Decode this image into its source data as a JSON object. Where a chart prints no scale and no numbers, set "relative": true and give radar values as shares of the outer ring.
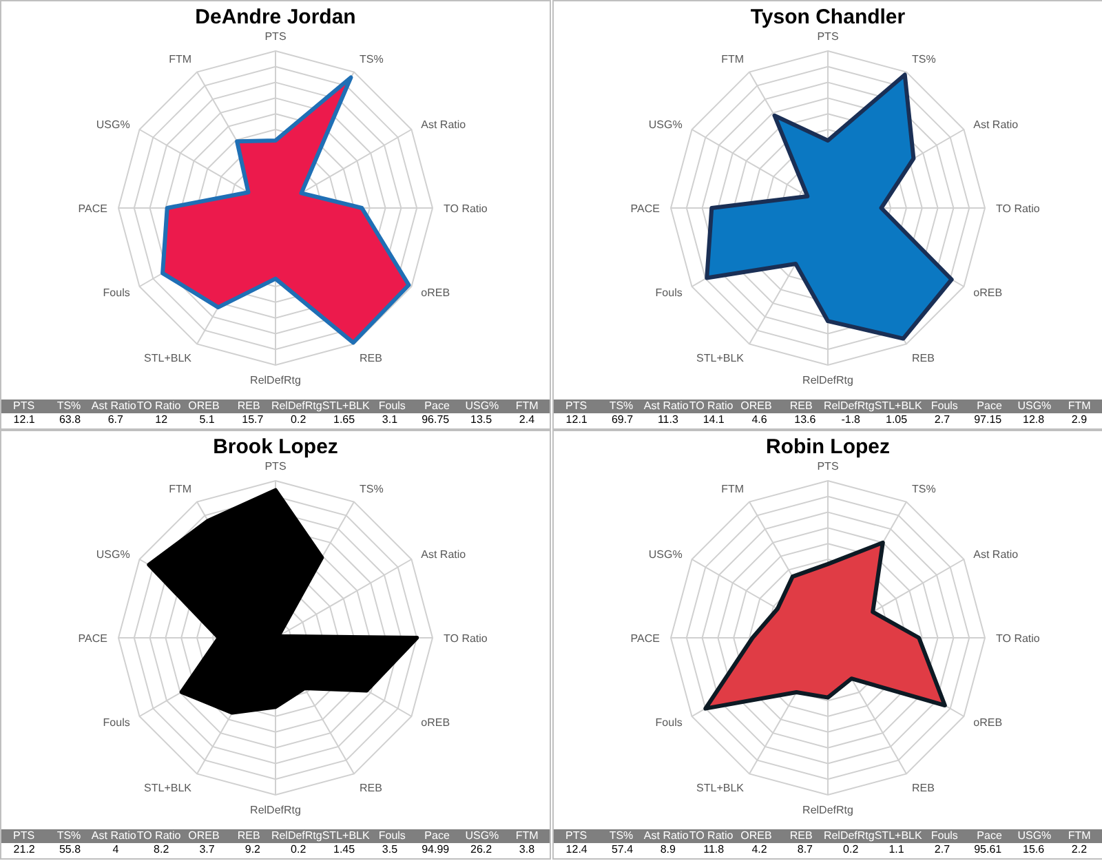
{
  "chart_data": [
    {
      "type": "radar",
      "title": "DeAndre Jordan",
      "relative": true,
      "categories": [
        "PTS",
        "TS%",
        "Ast Ratio",
        "TO Ratio",
        "oREB",
        "REB",
        "RelDefRtg",
        "STL+BLK",
        "Fouls",
        "PACE",
        "USG%",
        "FTM"
      ],
      "series": [
        {
          "color": "#ec1a4c",
          "values": [
            0.43,
            0.96,
            0.19,
            0.55,
            0.98,
            0.99,
            0.45,
            0.73,
            0.83,
            0.69,
            0.2,
            0.49
          ]
        }
      ]
    },
    {
      "type": "other",
      "categories": [
        "PTS",
        "TS%",
        "Ast Ratio",
        "TO Ratio",
        "OREB",
        "REB",
        "RelDefRtg",
        "STL+BLK",
        "Fouls",
        "Pace",
        "USG%",
        "FTM"
      ],
      "values": [
        12.1,
        63.8,
        6.7,
        12,
        5.1,
        15.7,
        0.2,
        1.65,
        3.1,
        96.75,
        13.5,
        2.4
      ],
      "data_labels": true
    },
    {
      "type": "radar",
      "title": "Tyson Chandler",
      "relative": true,
      "categories": [
        "PTS",
        "TS%",
        "Ast Ratio",
        "TO Ratio",
        "oREB",
        "REB",
        "RelDefRtg",
        "STL+BLK",
        "Fouls",
        "PACE",
        "USG%",
        "FTM"
      ],
      "series": [
        {
          "color": "#0b78c2",
          "values": [
            0.43,
            0.98,
            0.63,
            0.34,
            0.91,
            0.96,
            0.72,
            0.41,
            0.89,
            0.74,
            0.15,
            0.68
          ]
        }
      ]
    },
    {
      "type": "other",
      "categories": [
        "PTS",
        "TS%",
        "Ast Ratio",
        "TO Ratio",
        "OREB",
        "REB",
        "RelDefRtg",
        "STL+BLK",
        "Fouls",
        "Pace",
        "USG%",
        "FTM"
      ],
      "values": [
        12.1,
        69.7,
        11.3,
        14.1,
        4.6,
        13.6,
        -1.8,
        1.05,
        2.7,
        97.15,
        12.8,
        2.9
      ],
      "data_labels": true
    },
    {
      "type": "radar",
      "title": "Brook Lopez",
      "relative": true,
      "categories": [
        "PTS",
        "TS%",
        "Ast Ratio",
        "TO Ratio",
        "oREB",
        "REB",
        "RelDefRtg",
        "STL+BLK",
        "Fouls",
        "PACE",
        "USG%",
        "FTM"
      ],
      "series": [
        {
          "color": "#000000",
          "values": [
            0.94,
            0.59,
            0.02,
            0.9,
            0.67,
            0.37,
            0.44,
            0.55,
            0.69,
            0.36,
            0.93,
            0.86
          ]
        }
      ]
    },
    {
      "type": "other",
      "categories": [
        "PTS",
        "TS%",
        "Ast Ratio",
        "TO Ratio",
        "OREB",
        "REB",
        "RelDefRtg",
        "STL+BLK",
        "Fouls",
        "Pace",
        "USG%",
        "FTM"
      ],
      "values": [
        21.2,
        55.8,
        4,
        8.2,
        3.7,
        9.2,
        0.2,
        1.45,
        3.5,
        94.99,
        26.2,
        3.8
      ],
      "data_labels": true
    },
    {
      "type": "radar",
      "title": "Robin Lopez",
      "relative": true,
      "categories": [
        "PTS",
        "TS%",
        "Ast Ratio",
        "TO Ratio",
        "oREB",
        "REB",
        "RelDefRtg",
        "STL+BLK",
        "Fouls",
        "PACE",
        "USG%",
        "FTM"
      ],
      "series": [
        {
          "color": "#e03c45",
          "values": [
            0.47,
            0.7,
            0.33,
            0.58,
            0.86,
            0.3,
            0.38,
            0.4,
            0.9,
            0.48,
            0.37,
            0.45
          ]
        }
      ]
    },
    {
      "type": "other",
      "categories": [
        "PTS",
        "TS%",
        "Ast Ratio",
        "TO Ratio",
        "OREB",
        "REB",
        "RelDefRtg",
        "STL+BLK",
        "Fouls",
        "Pace",
        "USG%",
        "FTM"
      ],
      "values": [
        12.4,
        57.4,
        8.9,
        11.8,
        4.2,
        8.7,
        0.2,
        1.1,
        2.7,
        95.61,
        15.6,
        2.2
      ],
      "data_labels": true
    }
  ]
}
